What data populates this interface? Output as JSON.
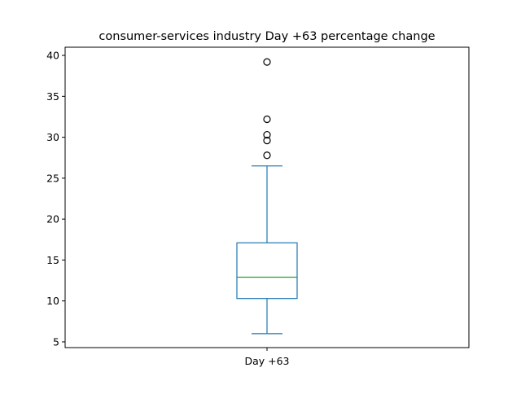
{
  "chart_data": {
    "type": "box",
    "title": "consumer-services industry Day +63 percentage change",
    "xlabel": "",
    "ylabel": "",
    "categories": [
      "Day +63"
    ],
    "ylim": [
      4.3,
      41.0
    ],
    "yticks": [
      5,
      10,
      15,
      20,
      25,
      30,
      35,
      40
    ],
    "boxes": [
      {
        "category": "Day +63",
        "whisker_low": 6.0,
        "q1": 10.3,
        "median": 12.9,
        "q3": 17.1,
        "whisker_high": 26.5,
        "outliers": [
          27.8,
          29.6,
          30.3,
          32.2,
          39.2
        ]
      }
    ],
    "colors": {
      "box": "#1f77b4",
      "median": "#2ca02c",
      "outlier_edge": "#000000",
      "axes": "#000000"
    },
    "grid": false
  }
}
